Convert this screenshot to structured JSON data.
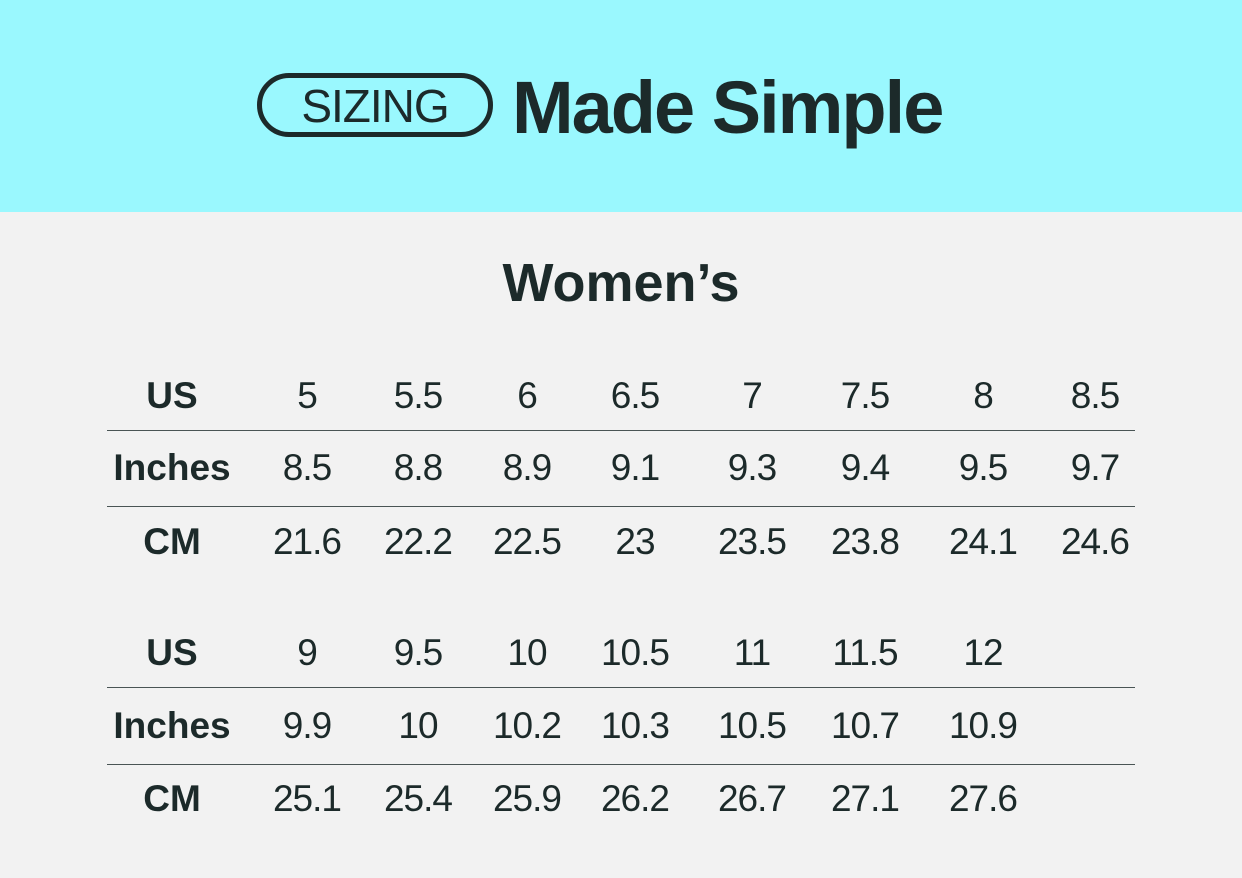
{
  "header": {
    "badge": "SIZING",
    "headline": "Made Simple",
    "background": "#9af8fe",
    "text_color": "#1c2a2a"
  },
  "title": "Women’s",
  "tables": [
    {
      "rows": [
        {
          "label": "US",
          "values": [
            "5",
            "5.5",
            "6",
            "6.5",
            "7",
            "7.5",
            "8",
            "8.5"
          ]
        },
        {
          "label": "Inches",
          "values": [
            "8.5",
            "8.8",
            "8.9",
            "9.1",
            "9.3",
            "9.4",
            "9.5",
            "9.7"
          ]
        },
        {
          "label": "CM",
          "values": [
            "21.6",
            "22.2",
            "22.5",
            "23",
            "23.5",
            "23.8",
            "24.1",
            "24.6"
          ]
        }
      ]
    },
    {
      "rows": [
        {
          "label": "US",
          "values": [
            "9",
            "9.5",
            "10",
            "10.5",
            "11",
            "11.5",
            "12"
          ]
        },
        {
          "label": "Inches",
          "values": [
            "9.9",
            "10",
            "10.2",
            "10.3",
            "10.5",
            "10.7",
            "10.9"
          ]
        },
        {
          "label": "CM",
          "values": [
            "25.1",
            "25.4",
            "25.9",
            "26.2",
            "26.7",
            "27.1",
            "27.6"
          ]
        }
      ]
    }
  ]
}
